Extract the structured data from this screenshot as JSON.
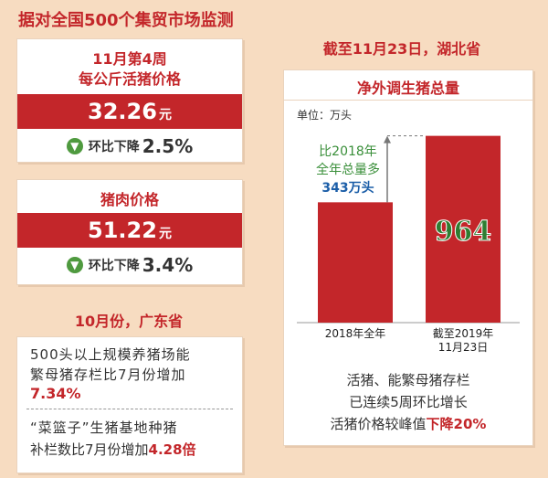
{
  "header": {
    "title": "据对全国500个集贸市场监测"
  },
  "live_pig_card": {
    "title_line1": "11月第4周",
    "title_line2": "每公斤活猪价格",
    "price": "32.26",
    "unit": "元",
    "change_prefix": "环比下降",
    "change_value": "2.5%"
  },
  "pork_card": {
    "title": "猪肉价格",
    "price": "51.22",
    "unit": "元",
    "change_prefix": "环比下降",
    "change_value": "3.4%"
  },
  "guangdong": {
    "heading": "10月份，广东省",
    "p1_line1": "500头以上规模养猪场能",
    "p1_line2": "繁母猪存栏比7月份增加",
    "p1_value": "7.34%",
    "p2_line1": "“菜篮子”生猪基地种猪",
    "p2_line2": "补栏数比7月份增加",
    "p2_value": "4.28倍"
  },
  "hubei": {
    "heading": "截至11月23日，湖北省",
    "note_line1": "活猪、能繁母猪存栏",
    "note_line2": "已连续5周环比增长",
    "note_line3_prefix": "活猪价格较峰值",
    "note_line3_value": "下降20%"
  },
  "chart_data": {
    "type": "bar",
    "title": "净外调生猪总量",
    "unit_label": "单位：万头",
    "categories": [
      "2018年全年",
      "截至2019年\n11月23日"
    ],
    "values": [
      621,
      964
    ],
    "data_labels": [
      "",
      "964"
    ],
    "annotation": {
      "line1": "比2018年",
      "line2": "全年总量多",
      "line3": "343万头"
    },
    "ylim": [
      0,
      1000
    ],
    "colors": {
      "bar": "#c3262a",
      "value_label": "#2e7d32",
      "annotation_text": "#3a8f3a",
      "annotation_value": "#1b5ea8"
    }
  }
}
